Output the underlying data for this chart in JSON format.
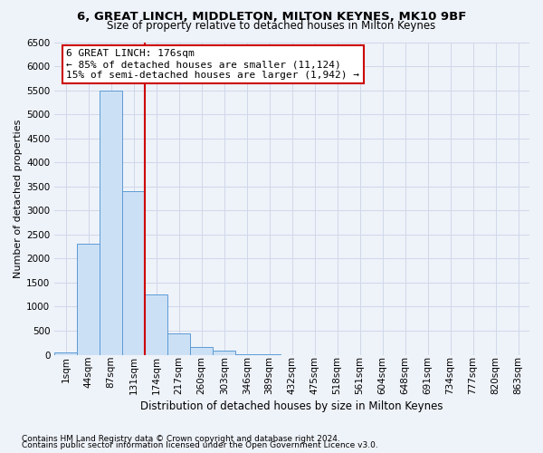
{
  "title": "6, GREAT LINCH, MIDDLETON, MILTON KEYNES, MK10 9BF",
  "subtitle": "Size of property relative to detached houses in Milton Keynes",
  "xlabel": "Distribution of detached houses by size in Milton Keynes",
  "ylabel": "Number of detached properties",
  "footnote1": "Contains HM Land Registry data © Crown copyright and database right 2024.",
  "footnote2": "Contains public sector information licensed under the Open Government Licence v3.0.",
  "annotation_title": "6 GREAT LINCH: 176sqm",
  "annotation_line1": "← 85% of detached houses are smaller (11,124)",
  "annotation_line2": "15% of semi-detached houses are larger (1,942) →",
  "bar_color": "#cce0f5",
  "bar_edge_color": "#5b9bd5",
  "property_line_color": "#cc0000",
  "annotation_box_edge_color": "#cc0000",
  "background_color": "#eef2f9",
  "grid_color": "#d0d8e8",
  "categories": [
    "1sqm",
    "44sqm",
    "87sqm",
    "131sqm",
    "174sqm",
    "217sqm",
    "260sqm",
    "303sqm",
    "346sqm",
    "389sqm",
    "432sqm",
    "475sqm",
    "518sqm",
    "561sqm",
    "604sqm",
    "648sqm",
    "691sqm",
    "734sqm",
    "777sqm",
    "820sqm",
    "863sqm"
  ],
  "values": [
    50,
    2300,
    5500,
    3400,
    1250,
    450,
    160,
    80,
    10,
    5,
    0,
    0,
    0,
    0,
    0,
    0,
    0,
    0,
    0,
    0,
    0
  ],
  "ylim": [
    0,
    6500
  ],
  "yticks": [
    0,
    500,
    1000,
    1500,
    2000,
    2500,
    3000,
    3500,
    4000,
    4500,
    5000,
    5500,
    6000,
    6500
  ],
  "property_line_x": 3.5,
  "title_fontsize": 9.5,
  "subtitle_fontsize": 8.5,
  "ylabel_fontsize": 8,
  "xlabel_fontsize": 8.5,
  "tick_fontsize": 7.5,
  "annotation_fontsize": 8,
  "footnote_fontsize": 6.5
}
